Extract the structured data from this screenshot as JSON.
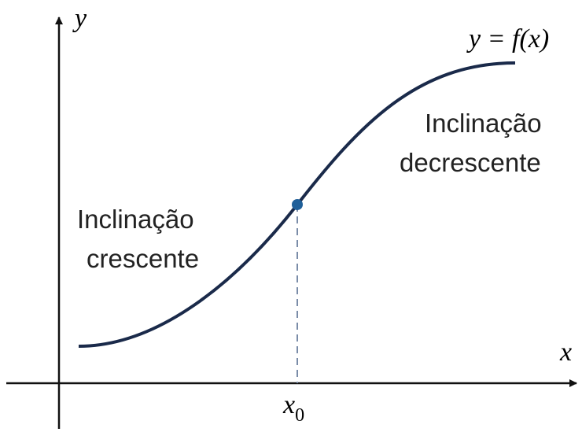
{
  "axes": {
    "y_label": "y",
    "x_label": "x"
  },
  "curve_label": "y = f(x)",
  "right_note": {
    "lines": [
      "Inclinação",
      "decrescente"
    ]
  },
  "left_note": {
    "lines": [
      "Inclinação",
      "crescente"
    ]
  },
  "point_label": {
    "label": "x",
    "subscript": "0"
  }
}
